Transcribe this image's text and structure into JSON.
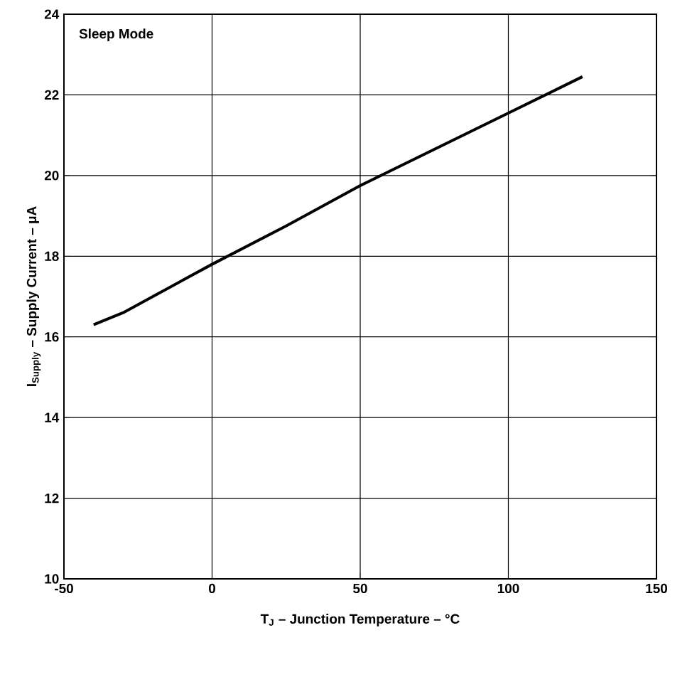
{
  "chart_data": {
    "type": "line",
    "xlabel": "T$_{J}$ – Junction  Temperature – °C",
    "ylabel": "I$_{Supply}$ – Supply Current – μA",
    "annotations": [
      "Sleep Mode"
    ],
    "x": [
      -40,
      -30,
      -20,
      0,
      25,
      50,
      75,
      100,
      125
    ],
    "series": [
      {
        "color": "#000000",
        "values": [
          16.3,
          16.6,
          17.0,
          17.8,
          18.75,
          19.75,
          20.65,
          21.55,
          22.45
        ]
      }
    ],
    "xlim": [
      -50,
      150
    ],
    "ylim": [
      10,
      24
    ],
    "xticks": [
      -50,
      0,
      50,
      100,
      150
    ],
    "yticks": [
      10,
      12,
      14,
      16,
      18,
      20,
      22,
      24
    ],
    "grid": true,
    "marker": "none",
    "line_style": "solid"
  }
}
